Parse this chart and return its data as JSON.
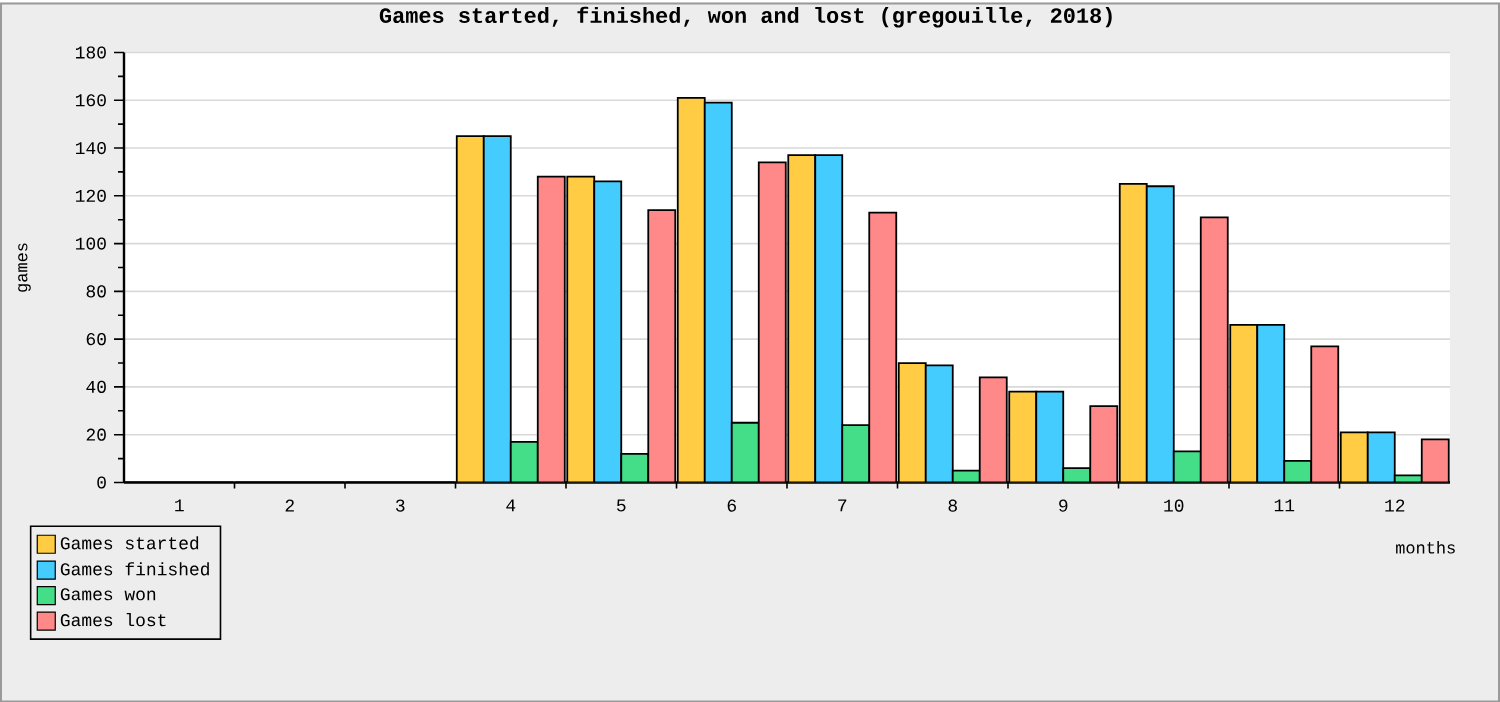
{
  "chart_data": {
    "type": "bar",
    "title": "Games started, finished, won and lost (gregouille, 2018)",
    "xlabel": "months",
    "ylabel": "games",
    "categories": [
      "1",
      "2",
      "3",
      "4",
      "5",
      "6",
      "7",
      "8",
      "9",
      "10",
      "11",
      "12"
    ],
    "series": [
      {
        "name": "Games started",
        "color": "#ffcc44",
        "values": [
          0,
          0,
          0,
          145,
          128,
          161,
          137,
          50,
          38,
          125,
          66,
          21
        ]
      },
      {
        "name": "Games finished",
        "color": "#44ccff",
        "values": [
          0,
          0,
          0,
          145,
          126,
          159,
          137,
          49,
          38,
          124,
          66,
          21
        ]
      },
      {
        "name": "Games won",
        "color": "#44dd88",
        "values": [
          0,
          0,
          0,
          17,
          12,
          25,
          24,
          5,
          6,
          13,
          9,
          3
        ]
      },
      {
        "name": "Games lost",
        "color": "#ff8888",
        "values": [
          0,
          0,
          0,
          128,
          114,
          134,
          113,
          44,
          32,
          111,
          57,
          18
        ]
      }
    ],
    "ylim": [
      0,
      180
    ],
    "yticks": [
      0,
      20,
      40,
      60,
      80,
      100,
      120,
      140,
      160,
      180
    ],
    "grid": "y",
    "legend": "bottom left"
  }
}
